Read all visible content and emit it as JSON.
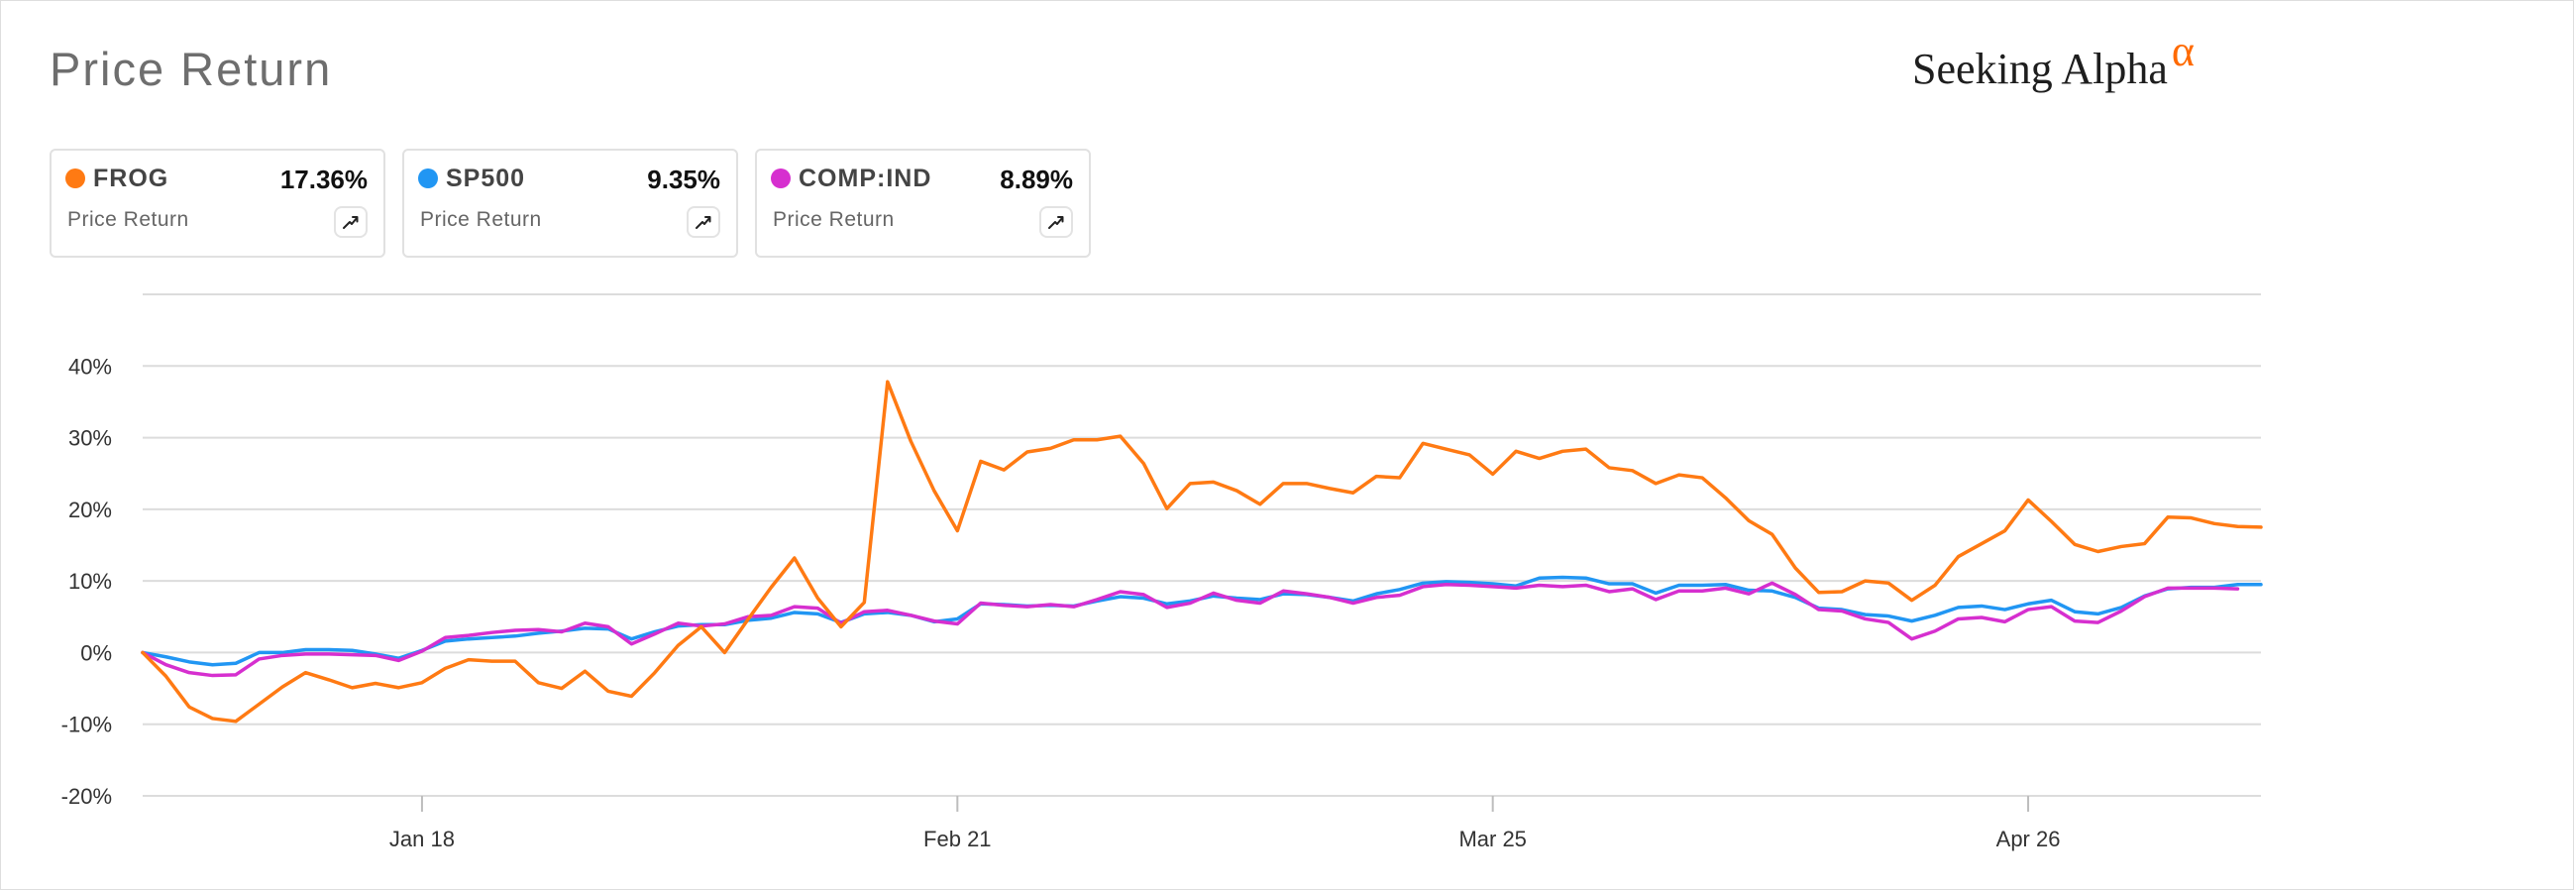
{
  "header": {
    "title": "Price Return",
    "logo_text": "Seeking Alpha",
    "logo_symbol": "α"
  },
  "cards": [
    {
      "ticker": "FROG",
      "value": "17.36%",
      "metric": "Price Return",
      "color": "#ff7a13",
      "icon": "trend-up-icon"
    },
    {
      "ticker": "SP500",
      "value": "9.35%",
      "metric": "Price Return",
      "color": "#2196f3",
      "icon": "trend-up-icon"
    },
    {
      "ticker": "COMP:IND",
      "value": "8.89%",
      "metric": "Price Return",
      "color": "#d62fcf",
      "icon": "trend-up-icon"
    }
  ],
  "chart_data": {
    "type": "line",
    "title": "Price Return",
    "ylabel": "",
    "xlabel": "",
    "x_range": [
      0,
      91
    ],
    "ylim": [
      -20,
      50
    ],
    "y_ticks": [
      -20,
      -10,
      0,
      10,
      20,
      30,
      40
    ],
    "y_tick_labels": [
      "-20%",
      "-10%",
      "0%",
      "10%",
      "20%",
      "30%",
      "40%"
    ],
    "gridlines": [
      -20,
      -10,
      0,
      10,
      20,
      30,
      40,
      50
    ],
    "x_ticks": [
      {
        "x": 12,
        "label": "Jan 18"
      },
      {
        "x": 35,
        "label": "Feb 21"
      },
      {
        "x": 58,
        "label": "Mar 25"
      },
      {
        "x": 81,
        "label": "Apr 26"
      }
    ],
    "grid": true,
    "legend": "cards-top",
    "series": [
      {
        "name": "FROG",
        "color": "#ff7a13",
        "values": [
          0,
          -3.3,
          -7.6,
          -9.2,
          -9.6,
          -7.2,
          -4.8,
          -2.8,
          -3.8,
          -4.9,
          -4.3,
          -4.9,
          -4.2,
          -2.2,
          -1,
          -1.2,
          -1.2,
          -4.2,
          -5,
          -2.6,
          -5.4,
          -6.1,
          -2.8,
          1,
          3.6,
          0,
          4.6,
          9.1,
          13.2,
          7.6,
          3.6,
          7,
          37.8,
          29.5,
          22.6,
          17,
          26.7,
          25.5,
          28,
          28.5,
          29.7,
          29.7,
          30.2,
          26.4,
          20.1,
          23.6,
          23.8,
          22.6,
          20.7,
          23.6,
          23.6,
          22.9,
          22.3,
          24.6,
          24.4,
          29.2,
          28.4,
          27.6,
          24.9,
          28.1,
          27.1,
          28.1,
          28.4,
          25.8,
          25.4,
          23.6,
          24.8,
          24.4,
          21.6,
          18.4,
          16.5,
          11.8,
          8.4,
          8.5,
          10,
          9.7,
          7.3,
          9.4,
          13.4,
          15.2,
          17,
          21.3,
          18.3,
          15.1,
          14.1,
          14.8,
          15.2,
          18.9,
          18.8,
          18,
          17.6,
          17.5
        ]
      },
      {
        "name": "SP500",
        "color": "#2196f3",
        "values": [
          0,
          -0.6,
          -1.3,
          -1.7,
          -1.5,
          0,
          0,
          0.4,
          0.4,
          0.3,
          -0.2,
          -0.8,
          0.3,
          1.6,
          1.9,
          2.1,
          2.3,
          2.7,
          3,
          3.4,
          3.3,
          1.9,
          2.9,
          3.7,
          3.9,
          3.9,
          4.5,
          4.8,
          5.6,
          5.4,
          4.2,
          5.4,
          5.6,
          5.2,
          4.3,
          4.7,
          6.8,
          6.7,
          6.5,
          6.6,
          6.5,
          7.2,
          7.8,
          7.6,
          6.8,
          7.2,
          7.9,
          7.6,
          7.4,
          8.2,
          8.1,
          7.7,
          7.2,
          8.2,
          8.8,
          9.7,
          9.9,
          9.8,
          9.6,
          9.3,
          10.4,
          10.5,
          10.4,
          9.6,
          9.6,
          8.3,
          9.4,
          9.4,
          9.5,
          8.7,
          8.6,
          7.7,
          6.2,
          6,
          5.3,
          5.1,
          4.4,
          5.2,
          6.3,
          6.5,
          6,
          6.8,
          7.3,
          5.7,
          5.4,
          6.3,
          7.9,
          8.9,
          9.1,
          9.1,
          9.5,
          9.5
        ]
      },
      {
        "name": "COMP:IND",
        "color": "#d62fcf",
        "values": [
          0,
          -1.7,
          -2.8,
          -3.2,
          -3.1,
          -0.9,
          -0.4,
          -0.2,
          -0.2,
          -0.3,
          -0.4,
          -1.1,
          0.2,
          2.1,
          2.4,
          2.8,
          3.1,
          3.2,
          2.9,
          4.1,
          3.6,
          1.2,
          2.6,
          4.1,
          3.7,
          4,
          5,
          5.2,
          6.4,
          6.2,
          4.1,
          5.7,
          5.9,
          5.2,
          4.4,
          4,
          6.9,
          6.6,
          6.4,
          6.7,
          6.4,
          7.4,
          8.5,
          8.1,
          6.3,
          6.9,
          8.3,
          7.3,
          6.9,
          8.6,
          8.2,
          7.7,
          6.9,
          7.7,
          8,
          9.2,
          9.5,
          9.4,
          9.2,
          9,
          9.4,
          9.2,
          9.4,
          8.5,
          8.9,
          7.4,
          8.6,
          8.6,
          9,
          8.2,
          9.7,
          8.1,
          6,
          5.8,
          4.7,
          4.2,
          1.9,
          3,
          4.7,
          4.9,
          4.3,
          6,
          6.4,
          4.4,
          4.2,
          5.8,
          7.8,
          9,
          9,
          9,
          8.9
        ]
      }
    ]
  }
}
